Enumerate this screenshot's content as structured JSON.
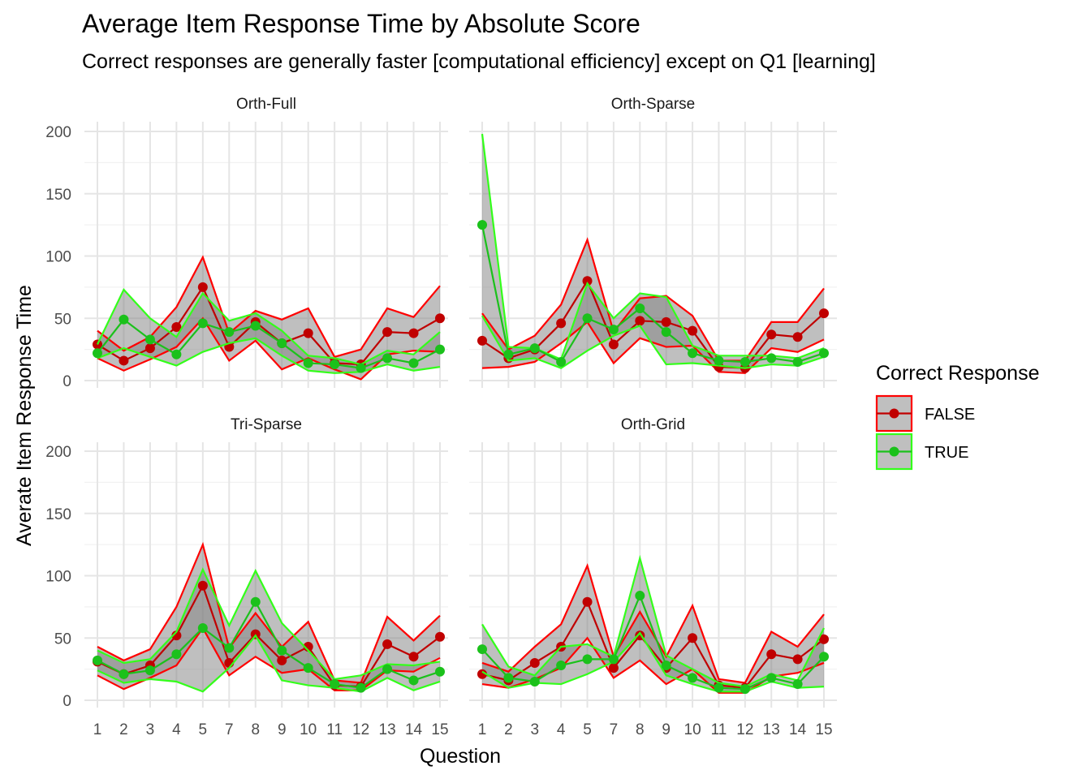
{
  "title": "Average Item Response Time by Absolute Score",
  "subtitle": "Correct responses are generally faster [computational efficiency] except on Q1 [learning]",
  "chart_data": {
    "type": "line",
    "facet_layout": "2x2",
    "x": [
      "1",
      "2",
      "3",
      "4",
      "5",
      "7",
      "8",
      "9",
      "10",
      "11",
      "12",
      "13",
      "14",
      "15"
    ],
    "xlabel": "Question",
    "ylabel": "Averate Item Response Time",
    "ylim": [
      0,
      200
    ],
    "yticks": [
      0,
      50,
      100,
      150,
      200
    ],
    "grid": true,
    "legend": {
      "title": "Correct Response",
      "position": "right",
      "entries": [
        {
          "label": "FALSE",
          "line_color": "#c00000",
          "band_color": "#ff0000"
        },
        {
          "label": "TRUE",
          "line_color": "#1bc11b",
          "band_color": "#33ff1a"
        }
      ]
    },
    "panels": [
      {
        "label": "Orth-Full",
        "series": [
          {
            "name": "FALSE",
            "mean": [
              29,
              16,
              26,
              43,
              75,
              27,
              47,
              30,
              38,
              14,
              13,
              39,
              38,
              50
            ],
            "upper": [
              40,
              24,
              35,
              59,
              99,
              38,
              56,
              49,
              58,
              19,
              25,
              58,
              51,
              76
            ],
            "lower": [
              18,
              8,
              17,
              27,
              50,
              16,
              32,
              9,
              18,
              9,
              1,
              21,
              24,
              23
            ]
          },
          {
            "name": "TRUE",
            "mean": [
              22,
              49,
              33,
              21,
              46,
              39,
              44,
              30,
              14,
              13,
              10,
              18,
              14,
              25
            ],
            "upper": [
              29,
              73,
              50,
              35,
              70,
              48,
              54,
              40,
              20,
              18,
              13,
              24,
              21,
              39
            ],
            "lower": [
              18,
              26,
              19,
              12,
              23,
              30,
              34,
              20,
              8,
              6,
              7,
              13,
              8,
              11
            ]
          }
        ]
      },
      {
        "label": "Orth-Sparse",
        "series": [
          {
            "name": "FALSE",
            "mean": [
              32,
              18,
              25,
              46,
              80,
              29,
              48,
              47,
              40,
              11,
              10,
              37,
              35,
              54
            ],
            "upper": [
              54,
              25,
              36,
              61,
              113,
              39,
              66,
              68,
              52,
              16,
              16,
              47,
              47,
              74
            ],
            "lower": [
              10,
              11,
              15,
              30,
              47,
              14,
              34,
              27,
              28,
              7,
              6,
              26,
              23,
              33
            ]
          },
          {
            "name": "TRUE",
            "mean": [
              125,
              21,
              26,
              15,
              50,
              41,
              58,
              39,
              22,
              16,
              15,
              18,
              15,
              22
            ],
            "upper": [
              198,
              27,
              26,
              17,
              78,
              50,
              70,
              67,
              28,
              20,
              20,
              20,
              18,
              26
            ],
            "lower": [
              52,
              16,
              18,
              10,
              24,
              36,
              44,
              13,
              14,
              12,
              10,
              13,
              12,
              19
            ]
          }
        ]
      },
      {
        "label": "Tri-Sparse",
        "series": [
          {
            "name": "FALSE",
            "mean": [
              31,
              21,
              28,
              52,
              92,
              30,
              53,
              32,
              43,
              12,
              11,
              45,
              35,
              51
            ],
            "upper": [
              43,
              32,
              41,
              75,
              125,
              42,
              70,
              43,
              63,
              16,
              14,
              67,
              48,
              68
            ],
            "lower": [
              20,
              9,
              18,
              28,
              58,
              20,
              35,
              22,
              25,
              8,
              8,
              24,
              23,
              34
            ]
          },
          {
            "name": "TRUE",
            "mean": [
              32,
              21,
              24,
              37,
              58,
              42,
              79,
              40,
              26,
              13,
              10,
              25,
              16,
              23
            ],
            "upper": [
              40,
              30,
              33,
              55,
              105,
              60,
              104,
              62,
              40,
              17,
              20,
              29,
              28,
              31
            ],
            "lower": [
              24,
              14,
              17,
              15,
              7,
              26,
              52,
              16,
              12,
              10,
              7,
              18,
              8,
              15
            ]
          }
        ]
      },
      {
        "label": "Orth-Grid",
        "series": [
          {
            "name": "FALSE",
            "mean": [
              21,
              16,
              30,
              43,
              79,
              26,
              52,
              26,
              50,
              12,
              10,
              37,
              33,
              49
            ],
            "upper": [
              30,
              23,
              43,
              61,
              108,
              35,
              71,
              35,
              76,
              17,
              14,
              55,
              43,
              69
            ],
            "lower": [
              13,
              10,
              17,
              26,
              50,
              18,
              32,
              13,
              25,
              6,
              6,
              19,
              22,
              30
            ]
          },
          {
            "name": "TRUE",
            "mean": [
              41,
              18,
              15,
              28,
              33,
              33,
              84,
              28,
              18,
              10,
              9,
              18,
              13,
              35
            ],
            "upper": [
              61,
              27,
              20,
              43,
              45,
              35,
              114,
              36,
              25,
              14,
              11,
              21,
              16,
              58
            ],
            "lower": [
              23,
              10,
              14,
              13,
              21,
              31,
              54,
              20,
              13,
              7,
              7,
              15,
              10,
              11
            ]
          }
        ]
      }
    ]
  }
}
